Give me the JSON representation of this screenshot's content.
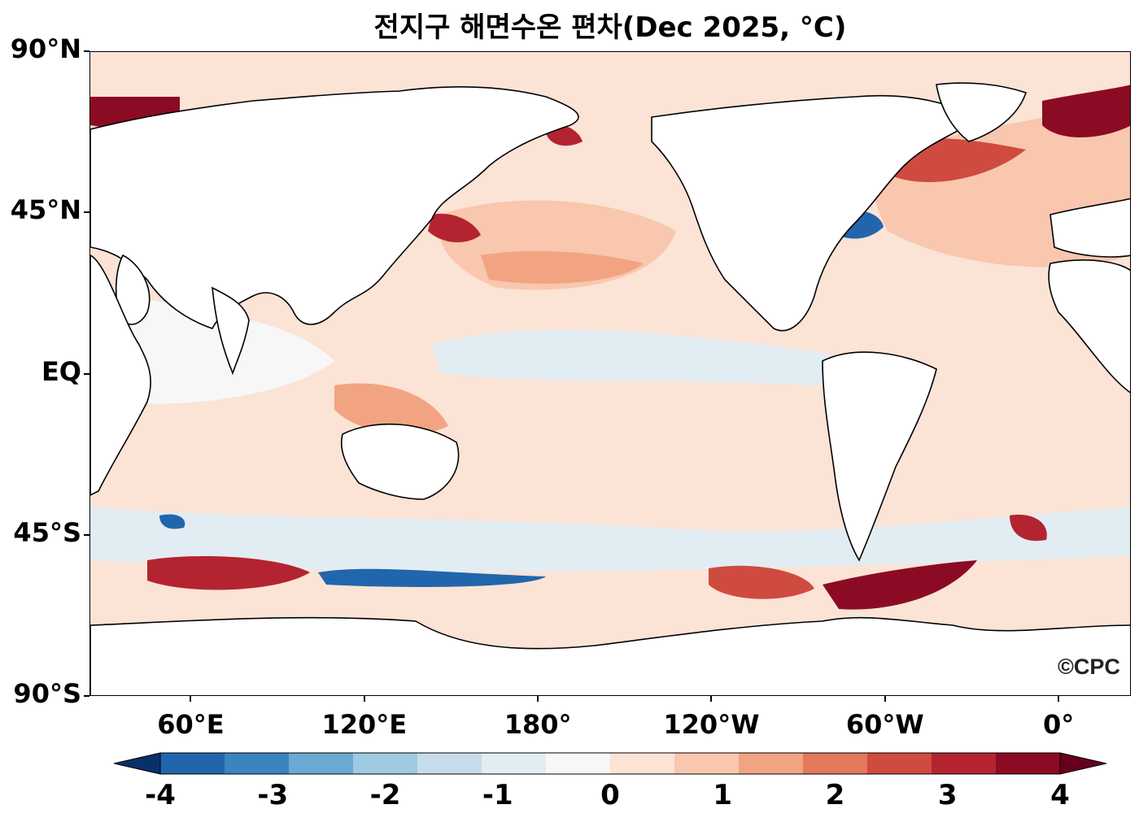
{
  "title": "전지구 해면수온 편차(Dec 2025, °C)",
  "credit": "©CPC",
  "lat_ticks": [
    {
      "label": "90°N",
      "lat": 90
    },
    {
      "label": "45°N",
      "lat": 45
    },
    {
      "label": "EQ",
      "lat": 0
    },
    {
      "label": "45°S",
      "lat": -45
    },
    {
      "label": "90°S",
      "lat": -90
    }
  ],
  "lon_ticks": [
    {
      "label": "60°E",
      "lon": 60
    },
    {
      "label": "120°E",
      "lon": 120
    },
    {
      "label": "180°",
      "lon": 180
    },
    {
      "label": "120°W",
      "lon": 240
    },
    {
      "label": "60°W",
      "lon": 300
    },
    {
      "label": "0°",
      "lon": 360
    }
  ],
  "map_extent": {
    "lon_min": 25,
    "lon_max": 385,
    "lat_min": -90,
    "lat_max": 90
  },
  "colorbar": {
    "min": -4,
    "max": 4,
    "step": 0.5,
    "extend": "both",
    "tick_labels": [
      "-4",
      "-3",
      "-2",
      "-1",
      "0",
      "1",
      "2",
      "3",
      "4"
    ],
    "tick_values": [
      -4,
      -3,
      -2,
      -1,
      0,
      1,
      2,
      3,
      4
    ],
    "colors": [
      "#08306b",
      "#2166ac",
      "#3a84c0",
      "#6aa9d2",
      "#9ecae1",
      "#c6dcea",
      "#e2edf3",
      "#f7f7f7",
      "#fbe3d6",
      "#f8c7ad",
      "#f2a482",
      "#e3785d",
      "#cf4b3f",
      "#b42430",
      "#8c0b24",
      "#67001f"
    ]
  },
  "colors": {
    "land": "#ffffff",
    "coast": "#000000",
    "ocean_base": "#fbe3d6"
  }
}
